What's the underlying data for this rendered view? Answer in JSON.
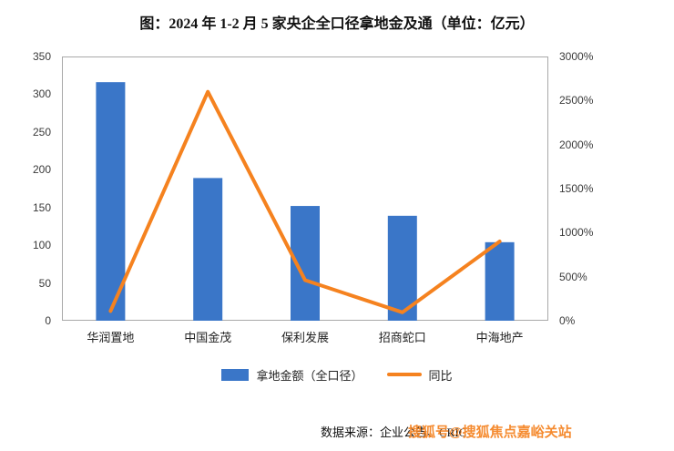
{
  "title": {
    "text": "图：2024 年 1-2 月 5 家央企全口径拿地金及通（单位：亿元）"
  },
  "chart_data": {
    "type": "bar",
    "subtype": "bar+line combo, dual axis",
    "title": "图：2024 年 1-2 月 5 家央企全口径拿地金及通（单位：亿元）",
    "categories": [
      "华润置地",
      "中国金茂",
      "保利发展",
      "招商蛇口",
      "中海地产"
    ],
    "series": [
      {
        "name": "拿地金额（全口径）",
        "type": "bar",
        "axis": "left",
        "color": "#3a76c8",
        "values": [
          316,
          189,
          152,
          139,
          104
        ]
      },
      {
        "name": "同比",
        "type": "line",
        "axis": "right",
        "color": "#f5821f",
        "values": [
          110,
          2600,
          460,
          95,
          900
        ]
      }
    ],
    "left_axis": {
      "max": 350,
      "tick_step": 50,
      "tick_labels": [
        "0",
        "50",
        "100",
        "150",
        "200",
        "250",
        "300",
        "350"
      ]
    },
    "right_axis": {
      "max": 3000,
      "tick_step": 500,
      "tick_labels": [
        "0%",
        "500%",
        "1000%",
        "1500%",
        "2000%",
        "2500%",
        "3000%"
      ]
    },
    "grid": false,
    "legend_position": "bottom"
  },
  "legend": {
    "bar_label": "拿地金额（全口径）",
    "line_label": "同比"
  },
  "footer": {
    "source": "数据来源：企业公告、CRIC",
    "watermark": "搜狐号@搜狐焦点嘉峪关站"
  }
}
